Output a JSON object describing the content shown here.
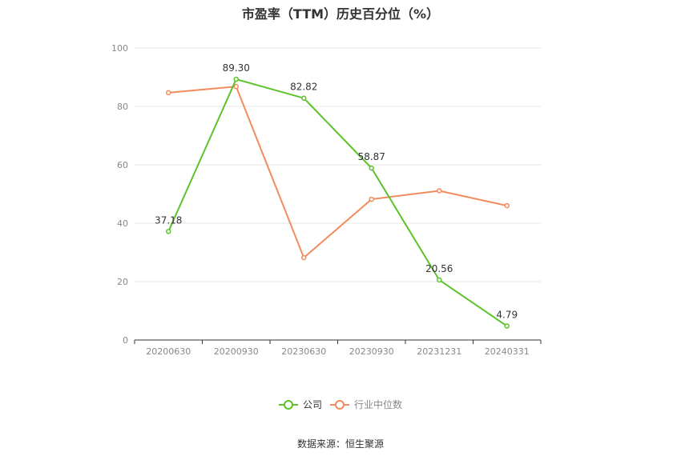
{
  "title": "市盈率（TTM）历史百分位（%）",
  "source": "数据来源：恒生聚源",
  "colors": {
    "company": "#5cc22a",
    "industry": "#f28b5c",
    "grid": "#e6e6e6",
    "axis": "#333333"
  },
  "chart_data": {
    "type": "line",
    "title": "市盈率（TTM）历史百分位（%）",
    "categories": [
      "20200630",
      "20200930",
      "20230630",
      "20230930",
      "20231231",
      "20240331"
    ],
    "ylim": [
      0,
      100
    ],
    "yticks": [
      0,
      20,
      40,
      60,
      80,
      100
    ],
    "grid": true,
    "legend_position": "bottom",
    "series": [
      {
        "name": "公司",
        "values": [
          37.18,
          89.3,
          82.82,
          58.87,
          20.56,
          4.79
        ],
        "labels": [
          "37.18",
          "89.30",
          "82.82",
          "58.87",
          "20.56",
          "4.79"
        ]
      },
      {
        "name": "行业中位数",
        "values": [
          84.7,
          86.8,
          28.2,
          48.2,
          51.1,
          46.0
        ]
      }
    ]
  }
}
